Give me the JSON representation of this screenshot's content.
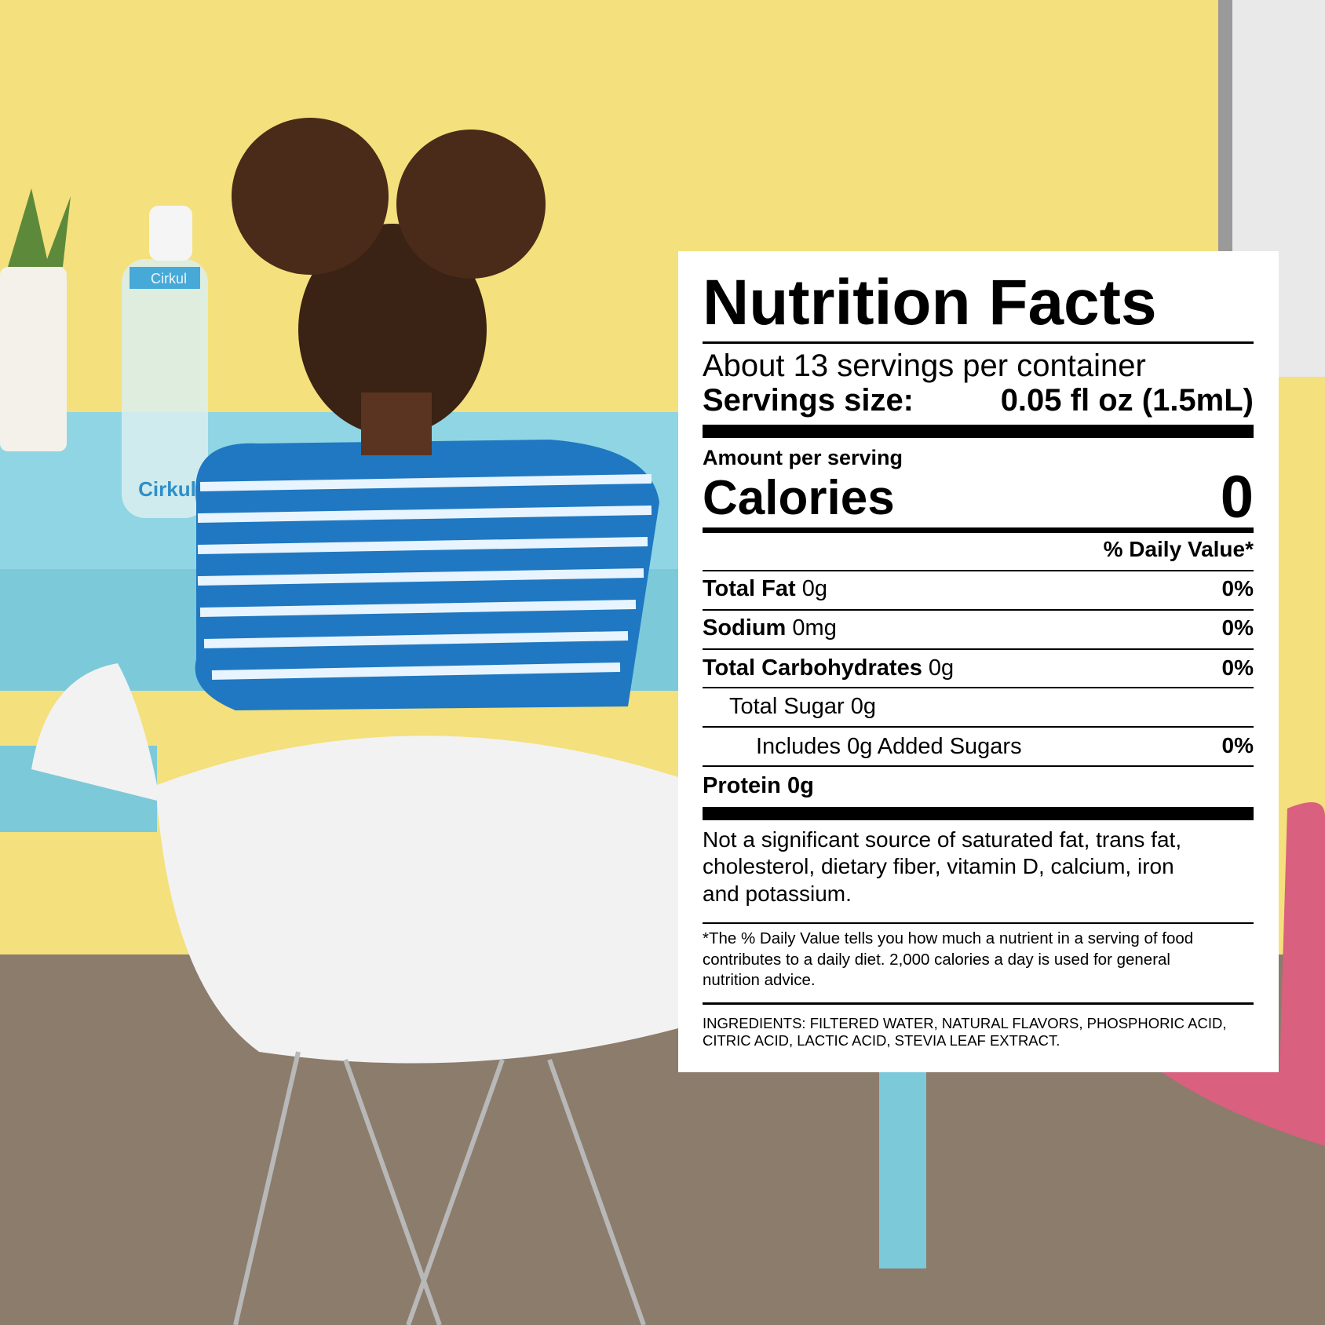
{
  "colors": {
    "wall": "#f4e07c",
    "carpet": "#8c7c6c",
    "desk": "#8fd5e4",
    "shirt_blue": "#1f78c1",
    "hair": "#4a2a18",
    "chair": "#f2f2f2",
    "cushion": "#d9607e"
  },
  "scene": {
    "bottom_brand": "Cirkul",
    "cap_brand": "Cirkul"
  },
  "label": {
    "title": "Nutrition Facts",
    "servings_per_container": "About 13 servings per container",
    "serving_size_label": "Servings size:",
    "serving_size_value": "0.05 fl oz (1.5mL)",
    "amount_per_serving": "Amount per serving",
    "calories_label": "Calories",
    "calories_value": "0",
    "daily_value_header": "% Daily Value*",
    "nutrients": [
      {
        "name": "Total Fat",
        "amount": "0g",
        "dv": "0%"
      },
      {
        "name": "Sodium",
        "amount": "0mg",
        "dv": "0%"
      },
      {
        "name": "Total Carbohydrates",
        "amount": "0g",
        "dv": "0%"
      },
      {
        "name": "Total Sugar",
        "amount": "0g",
        "dv": ""
      },
      {
        "name": "Includes 0g Added Sugars",
        "amount": "",
        "dv": "0%"
      },
      {
        "name": "Protein",
        "amount": "0g",
        "dv": ""
      }
    ],
    "not_significant": [
      "Not a significant source of saturated fat, trans fat,",
      "cholesterol, dietary fiber, vitamin D, calcium, iron",
      "and potassium."
    ],
    "footnote": [
      "*The % Daily Value tells you how much a nutrient in a serving of food",
      "contributes to a daily diet. 2,000 calories a day is used for general",
      "nutrition advice."
    ],
    "ingredients": [
      "INGREDIENTS: FILTERED WATER, NATURAL FLAVORS, PHOSPHORIC ACID,",
      "CITRIC ACID, LACTIC ACID, STEVIA LEAF EXTRACT."
    ]
  }
}
